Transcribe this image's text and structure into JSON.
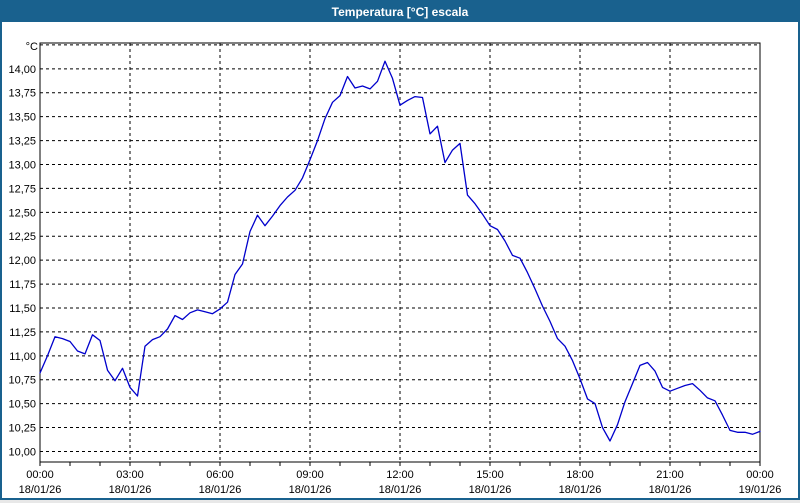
{
  "window": {
    "title": "Temperatura [°C] escala"
  },
  "colors": {
    "titlebar_bg": "#19618E",
    "titlebar_text": "#FFFFFF",
    "window_border": "#19618E",
    "plot_border": "#000000",
    "grid": "#000000",
    "line": "#0000CC",
    "axis_text": "#000000",
    "plot_bg": "#FFFFFF"
  },
  "chart_data": {
    "type": "line",
    "title": "Temperatura [°C] escala",
    "ylabel": "°C",
    "ylim": [
      9.89,
      14.27
    ],
    "grid_step_y": 0.25,
    "grid_step_x_hours": 3,
    "grid_style": "dashed",
    "legend": "none",
    "y_ticks": [
      {
        "v": 14.0,
        "label": "14,00"
      },
      {
        "v": 13.75,
        "label": "13,75"
      },
      {
        "v": 13.5,
        "label": "13,50"
      },
      {
        "v": 13.25,
        "label": "13,25"
      },
      {
        "v": 13.0,
        "label": "13,00"
      },
      {
        "v": 12.75,
        "label": "12,75"
      },
      {
        "v": 12.5,
        "label": "12,50"
      },
      {
        "v": 12.25,
        "label": "12,25"
      },
      {
        "v": 12.0,
        "label": "12,00"
      },
      {
        "v": 11.75,
        "label": "11,75"
      },
      {
        "v": 11.5,
        "label": "11,50"
      },
      {
        "v": 11.25,
        "label": "11,25"
      },
      {
        "v": 11.0,
        "label": "11,00"
      },
      {
        "v": 10.75,
        "label": "10,75"
      },
      {
        "v": 10.5,
        "label": "10,50"
      },
      {
        "v": 10.25,
        "label": "10,25"
      },
      {
        "v": 10.0,
        "label": "10,00"
      }
    ],
    "x_ticks": [
      {
        "h": 0,
        "time": "00:00",
        "date": "18/01/26"
      },
      {
        "h": 3,
        "time": "03:00",
        "date": "18/01/26"
      },
      {
        "h": 6,
        "time": "06:00",
        "date": "18/01/26"
      },
      {
        "h": 9,
        "time": "09:00",
        "date": "18/01/26"
      },
      {
        "h": 12,
        "time": "12:00",
        "date": "18/01/26"
      },
      {
        "h": 15,
        "time": "15:00",
        "date": "18/01/26"
      },
      {
        "h": 18,
        "time": "18:00",
        "date": "18/01/26"
      },
      {
        "h": 21,
        "time": "21:00",
        "date": "18/01/26"
      },
      {
        "h": 24,
        "time": "00:00",
        "date": "19/01/26"
      }
    ],
    "series": [
      {
        "name": "Temperatura",
        "points": [
          [
            "00:00",
            10.82
          ],
          [
            "00:15",
            11.0
          ],
          [
            "00:30",
            11.2
          ],
          [
            "00:45",
            11.18
          ],
          [
            "01:00",
            11.15
          ],
          [
            "01:15",
            11.05
          ],
          [
            "01:30",
            11.02
          ],
          [
            "01:45",
            11.22
          ],
          [
            "02:00",
            11.16
          ],
          [
            "02:15",
            10.85
          ],
          [
            "02:30",
            10.74
          ],
          [
            "02:45",
            10.87
          ],
          [
            "03:00",
            10.67
          ],
          [
            "03:15",
            10.58
          ],
          [
            "03:30",
            11.1
          ],
          [
            "03:45",
            11.17
          ],
          [
            "04:00",
            11.2
          ],
          [
            "04:15",
            11.28
          ],
          [
            "04:30",
            11.42
          ],
          [
            "04:45",
            11.38
          ],
          [
            "05:00",
            11.45
          ],
          [
            "05:15",
            11.48
          ],
          [
            "05:30",
            11.46
          ],
          [
            "05:45",
            11.44
          ],
          [
            "06:00",
            11.49
          ],
          [
            "06:15",
            11.56
          ],
          [
            "06:30",
            11.85
          ],
          [
            "06:45",
            11.96
          ],
          [
            "07:00",
            12.3
          ],
          [
            "07:15",
            12.47
          ],
          [
            "07:30",
            12.36
          ],
          [
            "07:45",
            12.46
          ],
          [
            "08:00",
            12.57
          ],
          [
            "08:15",
            12.66
          ],
          [
            "08:30",
            12.73
          ],
          [
            "08:45",
            12.86
          ],
          [
            "09:00",
            13.05
          ],
          [
            "09:15",
            13.25
          ],
          [
            "09:30",
            13.48
          ],
          [
            "09:45",
            13.65
          ],
          [
            "10:00",
            13.72
          ],
          [
            "10:15",
            13.92
          ],
          [
            "10:30",
            13.8
          ],
          [
            "10:45",
            13.82
          ],
          [
            "11:00",
            13.79
          ],
          [
            "11:15",
            13.87
          ],
          [
            "11:30",
            14.08
          ],
          [
            "11:45",
            13.9
          ],
          [
            "12:00",
            13.62
          ],
          [
            "12:15",
            13.67
          ],
          [
            "12:30",
            13.71
          ],
          [
            "12:45",
            13.7
          ],
          [
            "13:00",
            13.32
          ],
          [
            "13:15",
            13.4
          ],
          [
            "13:30",
            13.02
          ],
          [
            "13:45",
            13.15
          ],
          [
            "14:00",
            13.22
          ],
          [
            "14:15",
            12.68
          ],
          [
            "14:30",
            12.59
          ],
          [
            "14:45",
            12.48
          ],
          [
            "15:00",
            12.36
          ],
          [
            "15:15",
            12.32
          ],
          [
            "15:30",
            12.2
          ],
          [
            "15:45",
            12.05
          ],
          [
            "16:00",
            12.02
          ],
          [
            "16:15",
            11.87
          ],
          [
            "16:30",
            11.7
          ],
          [
            "16:45",
            11.52
          ],
          [
            "17:00",
            11.36
          ],
          [
            "17:15",
            11.18
          ],
          [
            "17:30",
            11.1
          ],
          [
            "17:45",
            10.95
          ],
          [
            "18:00",
            10.76
          ],
          [
            "18:15",
            10.55
          ],
          [
            "18:30",
            10.5
          ],
          [
            "18:45",
            10.25
          ],
          [
            "19:00",
            10.11
          ],
          [
            "19:15",
            10.28
          ],
          [
            "19:30",
            10.52
          ],
          [
            "19:45",
            10.71
          ],
          [
            "20:00",
            10.9
          ],
          [
            "20:15",
            10.93
          ],
          [
            "20:30",
            10.84
          ],
          [
            "20:45",
            10.67
          ],
          [
            "21:00",
            10.63
          ],
          [
            "21:15",
            10.66
          ],
          [
            "21:30",
            10.69
          ],
          [
            "21:45",
            10.71
          ],
          [
            "22:00",
            10.64
          ],
          [
            "22:15",
            10.56
          ],
          [
            "22:30",
            10.53
          ],
          [
            "22:45",
            10.38
          ],
          [
            "23:00",
            10.22
          ],
          [
            "23:15",
            10.2
          ],
          [
            "23:30",
            10.2
          ],
          [
            "23:45",
            10.18
          ],
          [
            "24:00",
            10.21
          ]
        ]
      }
    ]
  }
}
